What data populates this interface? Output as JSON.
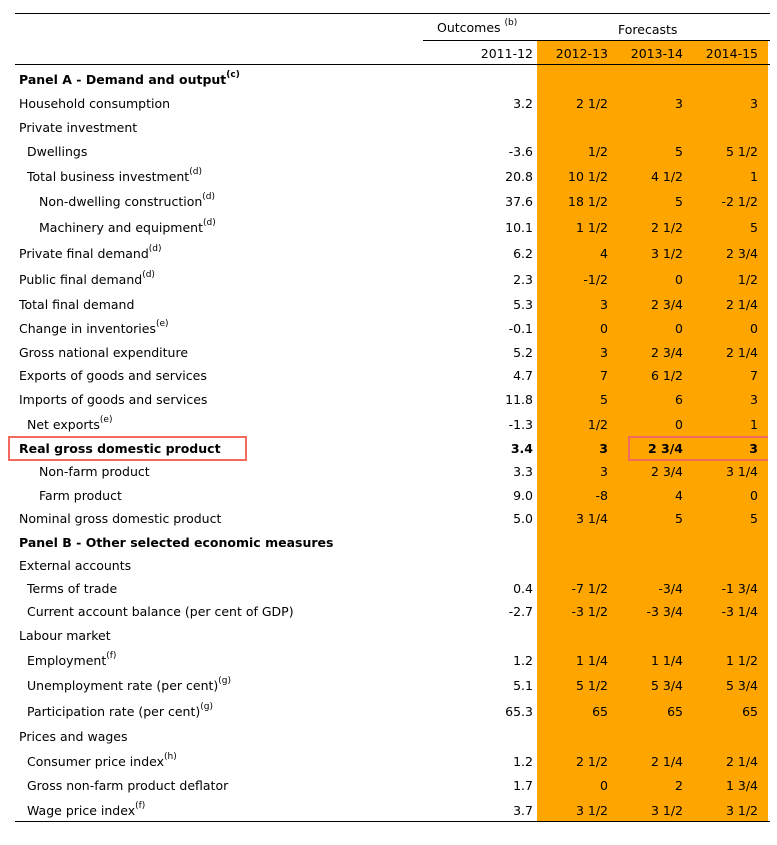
{
  "header": {
    "outcomes_label": "Outcomes",
    "outcomes_note": "(b)",
    "forecasts_label": "Forecasts",
    "years": [
      "2011-12",
      "2012-13",
      "2013-14",
      "2014-15"
    ]
  },
  "rows": [
    {
      "label": "Panel A - Demand and output",
      "note": "(c)",
      "indent": 0,
      "bold": true,
      "values": [
        "",
        "",
        "",
        ""
      ]
    },
    {
      "label": "Household consumption",
      "note": "",
      "indent": 0,
      "bold": false,
      "values": [
        "3.2",
        "2 1/2",
        "3",
        "3"
      ]
    },
    {
      "label": "Private investment",
      "note": "",
      "indent": 0,
      "bold": false,
      "values": [
        "",
        "",
        "",
        ""
      ]
    },
    {
      "label": "Dwellings",
      "note": "",
      "indent": 1,
      "bold": false,
      "values": [
        "-3.6",
        "1/2",
        "5",
        "5 1/2"
      ]
    },
    {
      "label": "Total business investment",
      "note": "(d)",
      "indent": 1,
      "bold": false,
      "values": [
        "20.8",
        "10 1/2",
        "4 1/2",
        "1"
      ]
    },
    {
      "label": "Non-dwelling construction",
      "note": "(d)",
      "indent": 2,
      "bold": false,
      "values": [
        "37.6",
        "18 1/2",
        "5",
        "-2 1/2"
      ]
    },
    {
      "label": "Machinery and equipment",
      "note": "(d)",
      "indent": 2,
      "bold": false,
      "values": [
        "10.1",
        "1 1/2",
        "2 1/2",
        "5"
      ]
    },
    {
      "label": "Private final demand",
      "note": "(d)",
      "indent": 0,
      "bold": false,
      "values": [
        "6.2",
        "4",
        "3 1/2",
        "2 3/4"
      ]
    },
    {
      "label": "Public final demand",
      "note": "(d)",
      "indent": 0,
      "bold": false,
      "values": [
        "2.3",
        "-1/2",
        "0",
        "1/2"
      ]
    },
    {
      "label": "Total final demand",
      "note": "",
      "indent": 0,
      "bold": false,
      "values": [
        "5.3",
        "3",
        "2 3/4",
        "2 1/4"
      ]
    },
    {
      "label": "Change in inventories",
      "note": "(e)",
      "indent": 0,
      "bold": false,
      "values": [
        "-0.1",
        "0",
        "0",
        "0"
      ]
    },
    {
      "label": "Gross national expenditure",
      "note": "",
      "indent": 0,
      "bold": false,
      "values": [
        "5.2",
        "3",
        "2 3/4",
        "2 1/4"
      ]
    },
    {
      "label": "Exports of goods and services",
      "note": "",
      "indent": 0,
      "bold": false,
      "values": [
        "4.7",
        "7",
        "6 1/2",
        "7"
      ]
    },
    {
      "label": "Imports of goods and services",
      "note": "",
      "indent": 0,
      "bold": false,
      "values": [
        "11.8",
        "5",
        "6",
        "3"
      ]
    },
    {
      "label": "Net exports",
      "note": "(e)",
      "indent": 1,
      "bold": false,
      "values": [
        "-1.3",
        "1/2",
        "0",
        "1"
      ]
    },
    {
      "label": "Real gross domestic product",
      "note": "",
      "indent": 0,
      "bold": true,
      "values": [
        "3.4",
        "3",
        "2 3/4",
        "3"
      ]
    },
    {
      "label": "Non-farm product",
      "note": "",
      "indent": 2,
      "bold": false,
      "values": [
        "3.3",
        "3",
        "2 3/4",
        "3 1/4"
      ]
    },
    {
      "label": "Farm product",
      "note": "",
      "indent": 2,
      "bold": false,
      "values": [
        "9.0",
        "-8",
        "4",
        "0"
      ]
    },
    {
      "label": "Nominal gross domestic product",
      "note": "",
      "indent": 0,
      "bold": false,
      "values": [
        "5.0",
        "3 1/4",
        "5",
        "5"
      ]
    },
    {
      "label": "Panel B - Other selected economic measures",
      "note": "",
      "indent": 0,
      "bold": true,
      "values": [
        "",
        "",
        "",
        ""
      ]
    },
    {
      "label": "External accounts",
      "note": "",
      "indent": 0,
      "bold": false,
      "values": [
        "",
        "",
        "",
        ""
      ]
    },
    {
      "label": "Terms of trade",
      "note": "",
      "indent": 1,
      "bold": false,
      "values": [
        "0.4",
        "-7 1/2",
        "-3/4",
        "-1 3/4"
      ]
    },
    {
      "label": "Current account balance (per cent of GDP)",
      "note": "",
      "indent": 1,
      "bold": false,
      "values": [
        "-2.7",
        "-3 1/2",
        "-3 3/4",
        "-3 1/4"
      ]
    },
    {
      "label": "Labour market",
      "note": "",
      "indent": 0,
      "bold": false,
      "values": [
        "",
        "",
        "",
        ""
      ]
    },
    {
      "label": "Employment",
      "note": "(f)",
      "indent": 1,
      "bold": false,
      "values": [
        "1.2",
        "1 1/4",
        "1 1/4",
        "1 1/2"
      ]
    },
    {
      "label": "Unemployment rate (per cent)",
      "note": "(g)",
      "indent": 1,
      "bold": false,
      "values": [
        "5.1",
        "5 1/2",
        "5 3/4",
        "5 3/4"
      ]
    },
    {
      "label": "Participation rate (per cent)",
      "note": "(g)",
      "indent": 1,
      "bold": false,
      "values": [
        "65.3",
        "65",
        "65",
        "65"
      ]
    },
    {
      "label": "Prices and wages",
      "note": "",
      "indent": 0,
      "bold": false,
      "values": [
        "",
        "",
        "",
        ""
      ]
    },
    {
      "label": "Consumer price index",
      "note": "(h)",
      "indent": 1,
      "bold": false,
      "values": [
        "1.2",
        "2 1/2",
        "2 1/4",
        "2 1/4"
      ]
    },
    {
      "label": "Gross non-farm product deflator",
      "note": "",
      "indent": 1,
      "bold": false,
      "values": [
        "1.7",
        "0",
        "2",
        "1 3/4"
      ]
    },
    {
      "label": "Wage price index",
      "note": "(f)",
      "indent": 1,
      "bold": false,
      "values": [
        "3.7",
        "3 1/2",
        "3 1/2",
        "3 1/2"
      ]
    }
  ],
  "colors": {
    "forecast_fill": "#FFA500",
    "highlight_border": "#F36B5F"
  }
}
